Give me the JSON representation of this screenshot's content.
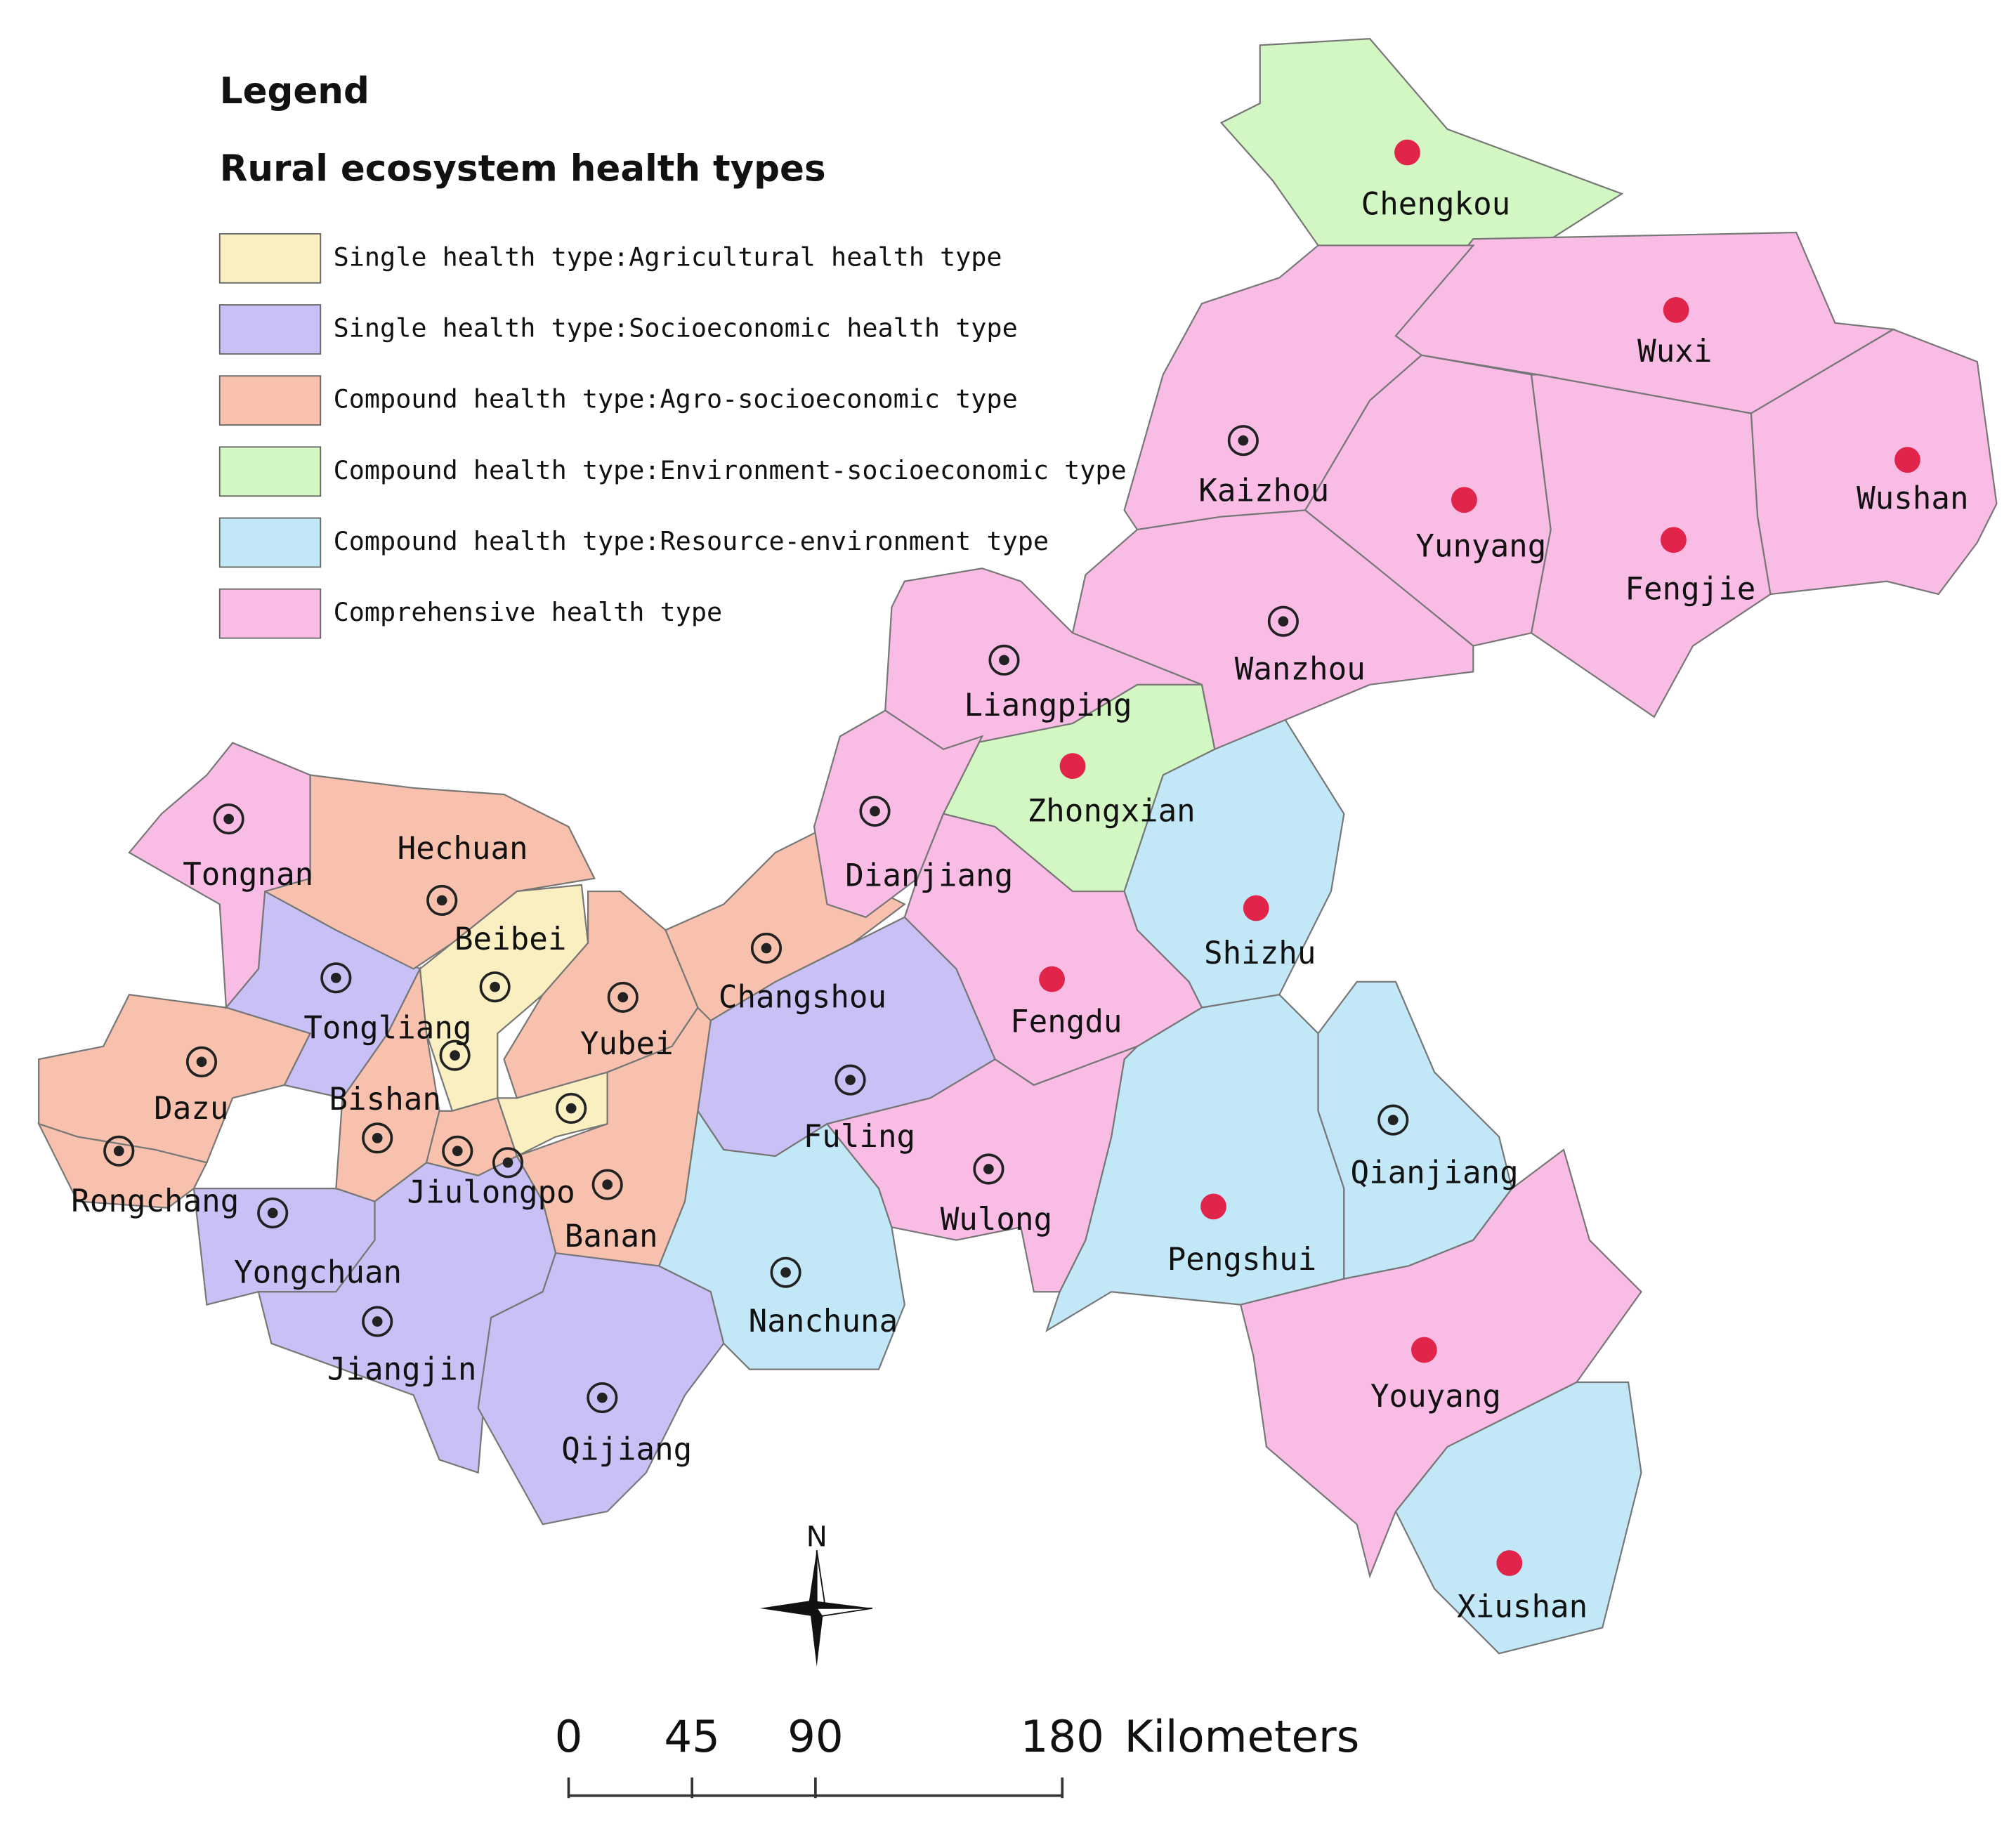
{
  "legend": {
    "title": "Legend",
    "subtitle": "Rural ecosystem health types",
    "items": [
      {
        "label": "Single health type:Agricultural health type",
        "color": "#f9efc0",
        "districts": [
          "Beibei"
        ]
      },
      {
        "label": "Single health type:Socioeconomic health type",
        "color": "#c9c0f6",
        "districts": [
          "Tongliang",
          "Yongchuan",
          "Jiangjin",
          "Qijiang",
          "Fuling"
        ]
      },
      {
        "label": "Compound health type:Agro-socioeconomic type",
        "color": "#f7c1ad",
        "districts": [
          "Hechuan",
          "Dazu",
          "Rongchang",
          "Bishan",
          "Jiulongpo",
          "Yubei",
          "Banan",
          "Changshou"
        ]
      },
      {
        "label": "Compound health type:Environment-socioeconomic type",
        "color": "#d3f7c2",
        "districts": [
          "Chengkou",
          "Zhongxian"
        ]
      },
      {
        "label": "Compound health type:Resource-environment type",
        "color": "#c2e7f7",
        "districts": [
          "Shizhu",
          "Nanchuna",
          "Pengshui",
          "Qianjiang",
          "Xiushan"
        ]
      },
      {
        "label": "Comprehensive health type",
        "color": "#f9bde5",
        "districts": [
          "Wuxi",
          "Kaizhou",
          "Yunyang",
          "Wushan",
          "Fengjie",
          "Wanzhou",
          "Liangping",
          "Tongnan",
          "Dianjiang",
          "Fengdu",
          "Wulong",
          "Youyang"
        ]
      }
    ]
  },
  "compass": {
    "label": "N"
  },
  "scale_bar": {
    "ticks": [
      0,
      45,
      90,
      180
    ],
    "unit": "Kilometers"
  }
}
